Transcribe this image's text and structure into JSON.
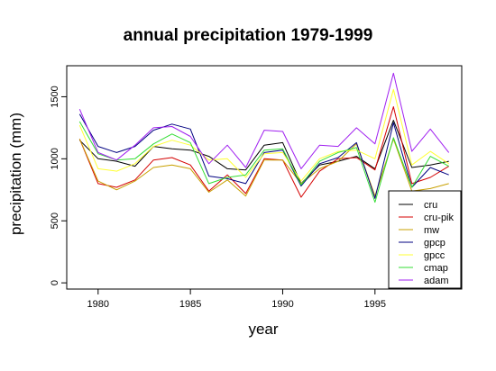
{
  "chart_data": {
    "type": "line",
    "title": "annual precipitation 1979-1999",
    "xlabel": "year",
    "ylabel": "precipitation (mm)",
    "x": [
      1979,
      1980,
      1981,
      1982,
      1983,
      1984,
      1985,
      1986,
      1987,
      1988,
      1989,
      1990,
      1991,
      1992,
      1993,
      1994,
      1995,
      1996,
      1997,
      1998,
      1999
    ],
    "xlim": [
      1978.3,
      1999.7
    ],
    "ylim": [
      -50,
      1750
    ],
    "x_ticks": [
      1980,
      1985,
      1990,
      1995
    ],
    "y_ticks": [
      0,
      500,
      1000,
      1500
    ],
    "grid": false,
    "legend_position": "bottom-right",
    "series": [
      {
        "name": "cru",
        "color": "#000000",
        "values": [
          1150,
          1000,
          980,
          940,
          1100,
          1080,
          1070,
          1020,
          920,
          910,
          1110,
          1130,
          800,
          950,
          980,
          1020,
          920,
          1310,
          930,
          950,
          980
        ]
      },
      {
        "name": "cru-pik",
        "color": "#d40000",
        "values": [
          1160,
          800,
          770,
          830,
          990,
          1010,
          950,
          740,
          870,
          720,
          1000,
          990,
          690,
          900,
          1000,
          1010,
          910,
          1420,
          800,
          850,
          940
        ]
      },
      {
        "name": "mw",
        "color": "#c8a000",
        "values": [
          1160,
          820,
          750,
          820,
          930,
          950,
          920,
          730,
          830,
          700,
          990,
          990,
          800,
          920,
          980,
          1120,
          700,
          1160,
          740,
          760,
          800
        ]
      },
      {
        "name": "gpcp",
        "color": "#000080",
        "values": [
          1360,
          1100,
          1050,
          1100,
          1230,
          1280,
          1240,
          860,
          840,
          800,
          1050,
          1070,
          780,
          960,
          1010,
          1130,
          680,
          1290,
          770,
          930,
          870
        ]
      },
      {
        "name": "gpcc",
        "color": "#ffff33",
        "values": [
          1270,
          920,
          900,
          960,
          1100,
          1150,
          1110,
          990,
          1000,
          850,
          1040,
          1050,
          820,
          1000,
          1060,
          1070,
          1000,
          1560,
          950,
          1060,
          960
        ]
      },
      {
        "name": "cmap",
        "color": "#33dd33",
        "values": [
          1300,
          1040,
          990,
          1000,
          1120,
          1200,
          1130,
          800,
          850,
          870,
          1070,
          1080,
          790,
          980,
          1050,
          1090,
          650,
          1170,
          770,
          1020,
          940
        ]
      },
      {
        "name": "adam",
        "color": "#a020f0",
        "values": [
          1400,
          1050,
          990,
          1110,
          1250,
          1260,
          1180,
          960,
          1110,
          930,
          1230,
          1220,
          920,
          1110,
          1100,
          1250,
          1120,
          1690,
          1060,
          1240,
          1050
        ]
      }
    ]
  }
}
